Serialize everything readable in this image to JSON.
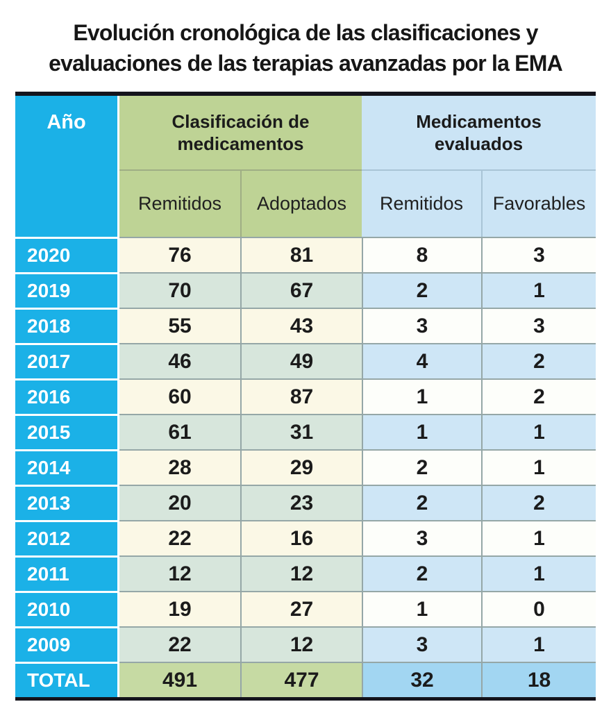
{
  "title_lines": [
    "Evolución cronológica de las clasificaciones y",
    "evaluaciones de las terapias avanzadas por la EMA"
  ],
  "table": {
    "year_header": "Año",
    "group1_lines": [
      "Clasificación de",
      "medicamentos"
    ],
    "group2_lines": [
      "Medicamentos",
      "evaluados"
    ],
    "subheaders": [
      "Remitidos",
      "Adoptados",
      "Remitidos",
      "Favorables"
    ],
    "total_label": "TOTAL"
  },
  "colors": {
    "accent_cyan": "#1BB1E7",
    "header_green": "#BED395",
    "header_blue": "#CBE4F5",
    "row_cream": "#FBF8E6",
    "row_white": "#FDFEFA",
    "row_sage": "#D7E6DC",
    "row_blue": "#CEE6F6",
    "total_green": "#C6DAA3",
    "total_blue": "#A2D6F2",
    "bar_dark": "#14141C",
    "text_dark": "#1B1B1B",
    "divider": "#95A7A7"
  },
  "chart_data": {
    "type": "table",
    "title": "Evolución cronológica de las clasificaciones y evaluaciones de las terapias avanzadas por la EMA",
    "columns": [
      "Año",
      "Clasificación de medicamentos - Remitidos",
      "Clasificación de medicamentos - Adoptados",
      "Medicamentos evaluados - Remitidos",
      "Medicamentos evaluados - Favorables"
    ],
    "rows": [
      [
        "2020",
        76,
        81,
        8,
        3
      ],
      [
        "2019",
        70,
        67,
        2,
        1
      ],
      [
        "2018",
        55,
        43,
        3,
        3
      ],
      [
        "2017",
        46,
        49,
        4,
        2
      ],
      [
        "2016",
        60,
        87,
        1,
        2
      ],
      [
        "2015",
        61,
        31,
        1,
        1
      ],
      [
        "2014",
        28,
        29,
        2,
        1
      ],
      [
        "2013",
        20,
        23,
        2,
        2
      ],
      [
        "2012",
        22,
        16,
        3,
        1
      ],
      [
        "2011",
        12,
        12,
        2,
        1
      ],
      [
        "2010",
        19,
        27,
        1,
        0
      ],
      [
        "2009",
        22,
        12,
        3,
        1
      ],
      [
        "TOTAL",
        491,
        477,
        32,
        18
      ]
    ]
  }
}
